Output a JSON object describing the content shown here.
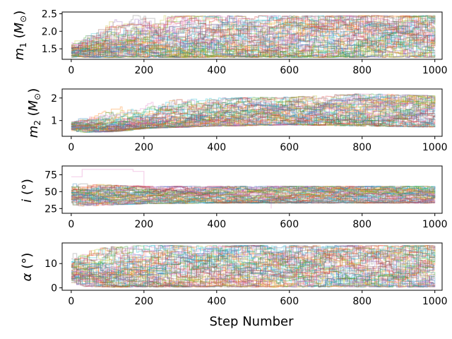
{
  "chart_data": {
    "type": "line",
    "xlabel": "Step Number",
    "xlim": [
      -25,
      1020
    ],
    "xticks": [
      0,
      200,
      400,
      600,
      800,
      1000
    ],
    "walker_colors": [
      "#1f77b4",
      "#ff7f0e",
      "#2ca02c",
      "#d62728",
      "#9467bd",
      "#8c564b",
      "#e377c2",
      "#7f7f7f",
      "#bcbd22",
      "#17becf"
    ],
    "panels": [
      {
        "ylabel": "m_1 (M_⊙)",
        "ylim": [
          1.2,
          2.55
        ],
        "yticks": [
          1.5,
          2.0,
          2.5
        ],
        "ytick_labels": [
          "1.5",
          "2.0",
          "2.5"
        ],
        "series": [
          {
            "x": [
              0,
              50,
              100,
              200,
              400,
              600,
              800,
              1000
            ],
            "y_low": [
              1.28,
              1.25,
              1.25,
              1.25,
              1.25,
              1.25,
              1.25,
              1.25
            ],
            "y_high": [
              1.95,
              2.4,
              2.45,
              2.45,
              2.45,
              2.45,
              2.45,
              2.45
            ],
            "y_median": [
              1.45,
              1.75,
              1.85,
              1.85,
              1.85,
              1.85,
              1.85,
              1.85
            ]
          }
        ]
      },
      {
        "ylabel": "m_2 (M_⊙)",
        "ylim": [
          0.3,
          2.4
        ],
        "yticks": [
          1,
          2
        ],
        "ytick_labels": [
          "1",
          "2"
        ],
        "series": [
          {
            "x": [
              0,
              100,
              200,
              400,
              600,
              800,
              1000
            ],
            "y_low": [
              0.45,
              0.5,
              0.65,
              0.75,
              0.8,
              0.75,
              0.7
            ],
            "y_high": [
              1.0,
              1.5,
              1.9,
              2.0,
              2.05,
              2.2,
              2.1
            ],
            "y_median": [
              0.75,
              0.95,
              1.15,
              1.25,
              1.3,
              1.35,
              1.3
            ]
          }
        ]
      },
      {
        "ylabel": "i (°)",
        "ylim": [
          18,
          88
        ],
        "yticks": [
          25,
          50,
          75
        ],
        "ytick_labels": [
          "25",
          "50",
          "75"
        ],
        "series": [
          {
            "x": [
              0,
              100,
              200,
              400,
              600,
              800,
              1000
            ],
            "y_low": [
              28,
              30,
              32,
              33,
              33,
              33,
              33
            ],
            "y_high": [
              62,
              60,
              58,
              58,
              58,
              58,
              58
            ],
            "y_median": [
              45,
              44,
              44,
              44,
              44,
              44,
              44
            ]
          },
          {
            "x": [
              0,
              30,
              100,
              170,
              200,
              250,
              500,
              550
            ],
            "y": [
              72,
              83,
              83,
              80,
              55,
              45,
              45,
              25
            ],
            "note": ""
          }
        ]
      },
      {
        "ylabel": "α (°)",
        "ylim": [
          -1,
          18.5
        ],
        "yticks": [
          0,
          10
        ],
        "ytick_labels": [
          "0",
          "10"
        ],
        "series": [
          {
            "x": [
              0,
              100,
              200,
              400,
              600,
              800,
              1000
            ],
            "y_low": [
              0.5,
              0.3,
              0.3,
              0.3,
              0.3,
              0.3,
              0.3
            ],
            "y_high": [
              14,
              17,
              17.5,
              17.5,
              17.5,
              17.5,
              17.5
            ],
            "y_median": [
              7,
              8,
              8.5,
              8.5,
              8.5,
              8.5,
              8.5
            ]
          }
        ]
      }
    ]
  }
}
